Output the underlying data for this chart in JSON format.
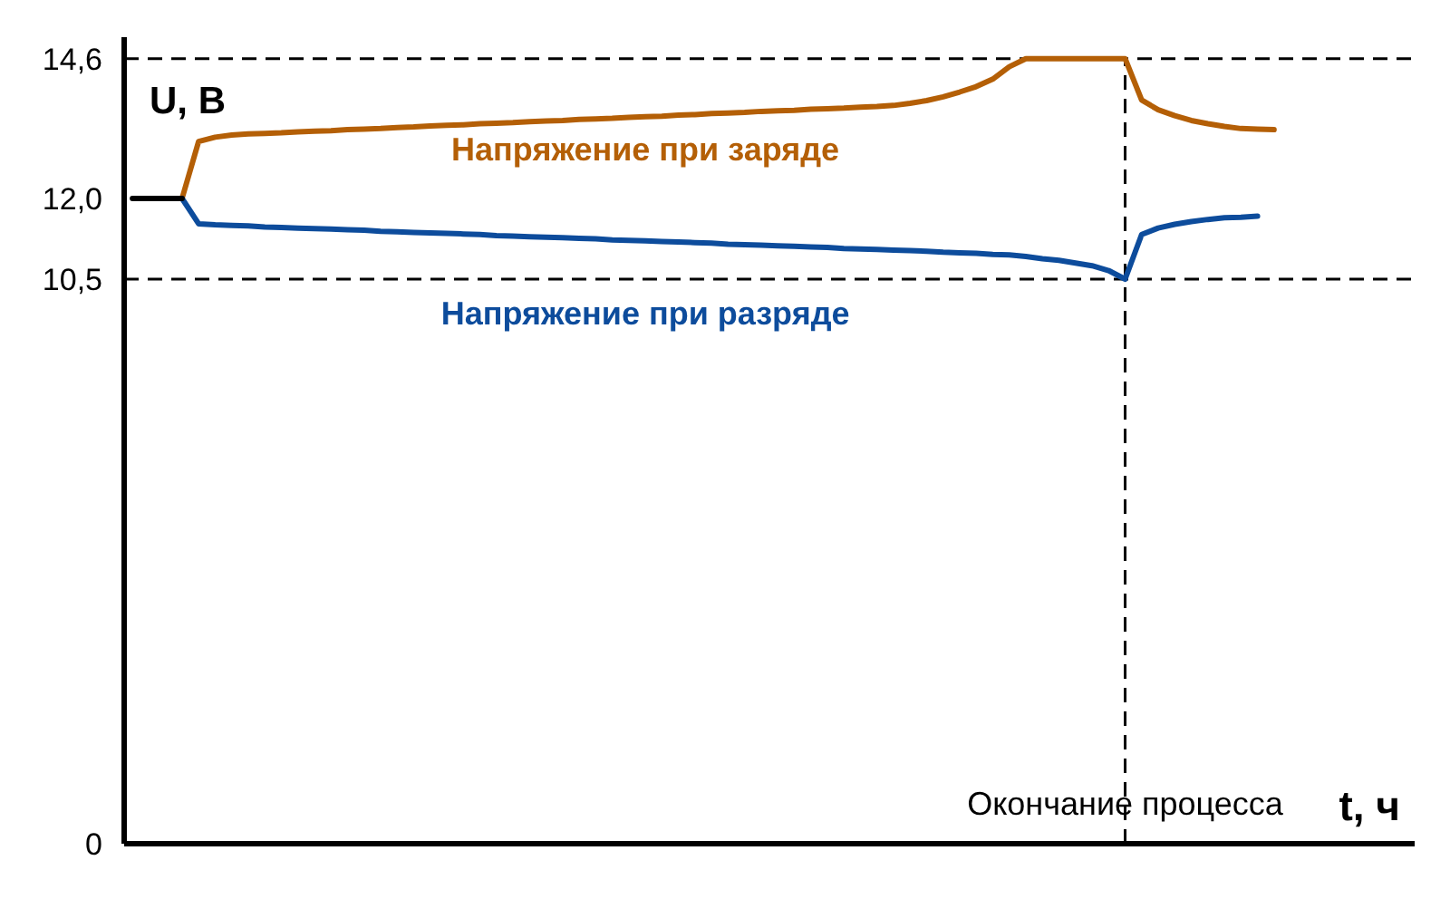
{
  "chart_data": {
    "type": "line",
    "xlabel": "t, ч",
    "ylabel": "U, В",
    "categories": [
      null,
      null,
      null,
      null,
      null,
      null,
      null,
      null,
      null,
      null,
      null,
      null,
      null,
      null,
      null,
      null,
      null,
      null,
      null,
      null,
      null,
      null,
      null,
      null,
      null,
      null,
      null,
      null,
      null,
      null,
      null,
      null,
      null,
      null,
      null,
      null,
      null,
      null,
      null,
      null,
      null,
      null,
      null,
      null,
      null,
      null,
      null,
      null,
      null,
      null,
      null,
      null,
      null,
      null,
      null,
      null,
      null,
      null,
      null,
      null,
      null,
      null,
      null,
      null,
      null,
      null,
      null,
      null,
      null,
      null,
      null,
      null,
      null,
      null,
      null,
      null,
      null,
      null
    ],
    "series": [
      {
        "name": "Напряжение при заряде",
        "color": "#b45f06",
        "values": [
          null,
          null,
          null,
          12.0,
          13.06,
          13.14,
          13.18,
          13.2,
          13.21,
          13.22,
          13.24,
          13.25,
          13.26,
          13.28,
          13.29,
          13.3,
          13.32,
          13.33,
          13.35,
          13.36,
          13.37,
          13.39,
          13.4,
          13.41,
          13.43,
          13.44,
          13.45,
          13.47,
          13.48,
          13.49,
          13.51,
          13.52,
          13.53,
          13.55,
          13.56,
          13.58,
          13.59,
          13.6,
          13.62,
          13.63,
          13.64,
          13.66,
          13.67,
          13.68,
          13.7,
          13.71,
          13.73,
          13.77,
          13.82,
          13.89,
          13.98,
          14.08,
          14.22,
          14.45,
          14.6,
          14.6,
          14.6,
          14.6,
          14.6,
          14.6,
          14.6,
          13.83,
          13.65,
          13.54,
          13.45,
          13.39,
          13.34,
          13.3,
          13.29,
          13.28,
          null,
          null,
          null,
          null,
          null,
          null,
          null,
          null
        ]
      },
      {
        "name": "Напряжение при разряде",
        "color": "#0d4c9c",
        "values": [
          null,
          null,
          null,
          12.0,
          11.53,
          11.51,
          11.5,
          11.49,
          11.47,
          11.46,
          11.45,
          11.44,
          11.43,
          11.42,
          11.41,
          11.39,
          11.38,
          11.37,
          11.36,
          11.35,
          11.34,
          11.33,
          11.31,
          11.3,
          11.29,
          11.28,
          11.27,
          11.26,
          11.25,
          11.23,
          11.22,
          11.21,
          11.2,
          11.19,
          11.18,
          11.17,
          11.15,
          11.14,
          11.13,
          11.12,
          11.11,
          11.1,
          11.09,
          11.07,
          11.06,
          11.05,
          11.04,
          11.03,
          11.02,
          11.0,
          10.99,
          10.98,
          10.96,
          10.95,
          10.92,
          10.88,
          10.85,
          10.8,
          10.75,
          10.66,
          10.5,
          11.33,
          11.45,
          11.52,
          11.57,
          11.61,
          11.64,
          11.65,
          11.67,
          null,
          null,
          null,
          null,
          null,
          null,
          null,
          null,
          null
        ]
      },
      {
        "color": "#000000",
        "values": [
          12.0,
          12.0,
          12.0,
          12.0,
          null,
          null,
          null,
          null,
          null,
          null,
          null,
          null,
          null,
          null,
          null,
          null,
          null,
          null,
          null,
          null,
          null,
          null,
          null,
          null,
          null,
          null,
          null,
          null,
          null,
          null,
          null,
          null,
          null,
          null,
          null,
          null,
          null,
          null,
          null,
          null,
          null,
          null,
          null,
          null,
          null,
          null,
          null,
          null,
          null,
          null,
          null,
          null,
          null,
          null,
          null,
          null,
          null,
          null,
          null,
          null,
          null,
          null,
          null,
          null,
          null,
          null,
          null,
          null,
          null,
          null,
          null,
          null,
          null,
          null,
          null,
          null,
          null,
          null
        ]
      }
    ],
    "ylim": [
      0,
      15
    ],
    "yticks": [
      0,
      {
        "value": 10.5,
        "label": "10,5"
      },
      {
        "value": 12.0,
        "label": "12,0"
      },
      {
        "value": 14.6,
        "label": "14,6"
      }
    ],
    "ref_lines": [
      {
        "axis": "y",
        "value": 14.6,
        "color": "#000000",
        "line_style": "dashed"
      },
      {
        "axis": "y",
        "value": 10.5,
        "color": "#000000",
        "line_style": "dashed"
      }
    ],
    "annotations": [
      "Окончание процесса"
    ]
  }
}
